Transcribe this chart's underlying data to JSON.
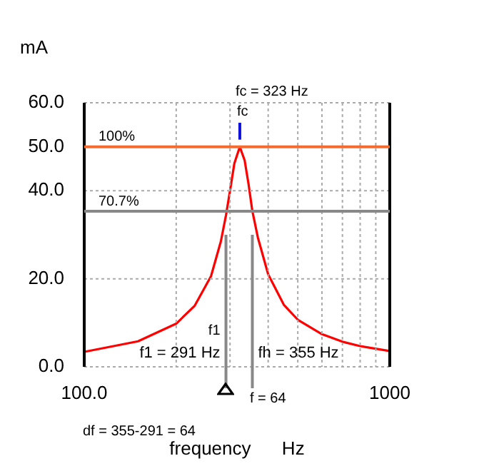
{
  "chart_data": {
    "type": "line",
    "xlabel": "frequency      Hz",
    "ylabel": "mA",
    "log": "x",
    "x": [
      100,
      150,
      200,
      230,
      260,
      280,
      291,
      300,
      310,
      323,
      335,
      345,
      355,
      370,
      400,
      450,
      500,
      600,
      700,
      800,
      1000
    ],
    "series": [
      {
        "color": "#ff0000",
        "values": [
          3.4,
          5.8,
          9.8,
          13.9,
          20.6,
          28.5,
          34.4,
          40,
          46.2,
          50,
          46.9,
          41.5,
          35.4,
          29.4,
          21,
          14.1,
          10.7,
          7.4,
          5.7,
          4.7,
          3.6
        ]
      }
    ],
    "xlim": [
      100,
      1000
    ],
    "xticks": [
      {
        "value": 100,
        "label": "100.0"
      },
      {
        "value": 200,
        "label": null
      },
      {
        "value": 300,
        "label": null
      },
      {
        "value": 400,
        "label": null
      },
      {
        "value": 500,
        "label": null
      },
      {
        "value": 600,
        "label": null
      },
      {
        "value": 700,
        "label": null
      },
      {
        "value": 800,
        "label": null
      },
      {
        "value": 900,
        "label": null
      },
      {
        "value": 1000,
        "label": "1000"
      }
    ],
    "ylim": [
      0,
      60
    ],
    "yticks": [
      {
        "value": 0,
        "label": "0.0"
      },
      {
        "value": 20,
        "label": "20.0"
      },
      {
        "value": 40,
        "label": "40.0"
      },
      {
        "value": 50,
        "label": "50.0"
      },
      {
        "value": 60,
        "label": "60.0"
      }
    ],
    "grid": true,
    "marker": "none",
    "line_style": "solid",
    "legend": false,
    "ref_lines": [
      {
        "axis": "y",
        "value": 50,
        "color": "#f26b2f"
      },
      {
        "axis": "y",
        "value": 35.35,
        "color": "#888888"
      },
      {
        "axis": "x",
        "value": 291,
        "label": "f1 = 291 Hz",
        "color": "#888888"
      },
      {
        "axis": "x",
        "value": 355,
        "label": "fh = 355 Hz",
        "color": "#888888"
      }
    ],
    "annotations": [
      "fc = 323 Hz",
      {
        "text": "fc",
        "x": 323,
        "y": 50
      },
      {
        "text": "100%",
        "y": 50
      },
      {
        "text": "70.7%",
        "y": 35.35
      },
      {
        "text": "f1",
        "x": 291,
        "y": 6
      },
      "f = 64",
      "df = 355-291 = 64"
    ]
  }
}
